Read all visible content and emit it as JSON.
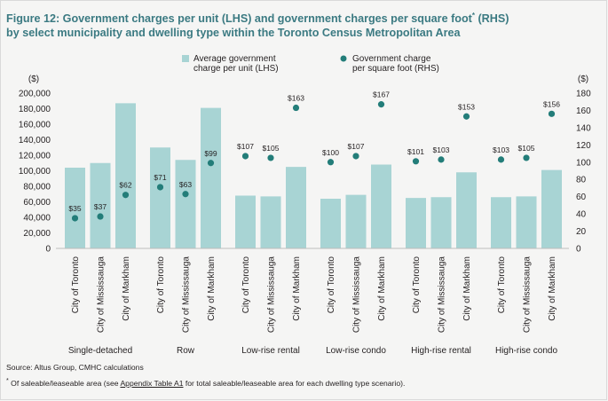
{
  "title": {
    "line1_main": "Figure 12: Government charges per unit (LHS) and government charges per square foot",
    "line1_sup": "*",
    "line1_tail": " (RHS)",
    "line2": "by select municipality and dwelling type within the Toronto Census Metropolitan Area"
  },
  "colors": {
    "bar": "#a8d4d4",
    "dot": "#237d79",
    "title": "#3b7a82",
    "axis": "#231f20"
  },
  "chart_data": {
    "type": "bar",
    "title": "Government charges per unit (LHS) and government charges per square foot (RHS)",
    "legend": {
      "bar_label_line1": "Average government",
      "bar_label_line2": "charge per unit (LHS)",
      "dot_label_line1": "Government charge",
      "dot_label_line2": "per square foot (RHS)",
      "placement": "top"
    },
    "left_axis": {
      "unit": "($)",
      "range": [
        0,
        200000
      ],
      "ticks": [
        "200,000",
        "180,000",
        "160,000",
        "140,000",
        "120,000",
        "100,000",
        "80,000",
        "60,000",
        "40,000",
        "20,000",
        "0"
      ]
    },
    "right_axis": {
      "unit": "($)",
      "range": [
        0,
        180
      ],
      "ticks": [
        "180",
        "160",
        "140",
        "120",
        "100",
        "80",
        "60",
        "40",
        "20",
        "0"
      ]
    },
    "groups": [
      {
        "name": "Single-detached",
        "categories": [
          "City of Toronto",
          "City of Mississauga",
          "City of Markham"
        ],
        "per_unit": [
          104000,
          110000,
          187000
        ],
        "per_sqft": [
          35,
          37,
          62
        ],
        "labels": [
          "$35",
          "$37",
          "$62"
        ]
      },
      {
        "name": "Row",
        "categories": [
          "City of Toronto",
          "City of Mississauga",
          "City of Markham"
        ],
        "per_unit": [
          130000,
          114000,
          181000
        ],
        "per_sqft": [
          71,
          63,
          99
        ],
        "labels": [
          "$71",
          "$63",
          "$99"
        ]
      },
      {
        "name": "Low-rise rental",
        "categories": [
          "City of Toronto",
          "City of Mississauga",
          "City of Markham"
        ],
        "per_unit": [
          68000,
          67000,
          105000
        ],
        "per_sqft": [
          107,
          105,
          163
        ],
        "labels": [
          "$107",
          "$105",
          "$163"
        ]
      },
      {
        "name": "Low-rise condo",
        "categories": [
          "City of Toronto",
          "City of Mississauga",
          "City of Markham"
        ],
        "per_unit": [
          64000,
          69000,
          108000
        ],
        "per_sqft": [
          100,
          107,
          167
        ],
        "labels": [
          "$100",
          "$107",
          "$167"
        ]
      },
      {
        "name": "High-rise rental",
        "categories": [
          "City of Toronto",
          "City of Mississauga",
          "City of Markham"
        ],
        "per_unit": [
          65000,
          66000,
          98000
        ],
        "per_sqft": [
          101,
          103,
          153
        ],
        "labels": [
          "$101",
          "$103",
          "$153"
        ]
      },
      {
        "name": "High-rise condo",
        "categories": [
          "City of Toronto",
          "City of Mississauga",
          "City of Markham"
        ],
        "per_unit": [
          66000,
          67000,
          101000
        ],
        "per_sqft": [
          103,
          105,
          156
        ],
        "labels": [
          "$103",
          "$105",
          "$156"
        ]
      }
    ]
  },
  "footer": {
    "source": "Source: Altus Group, CMHC calculations",
    "note_mark": "*",
    "note_pre": " Of saleable/leaseable area (see ",
    "note_link": "Appendix Table A1",
    "note_post": " for total saleable/leaseable area for each dwelling type scenario)."
  }
}
